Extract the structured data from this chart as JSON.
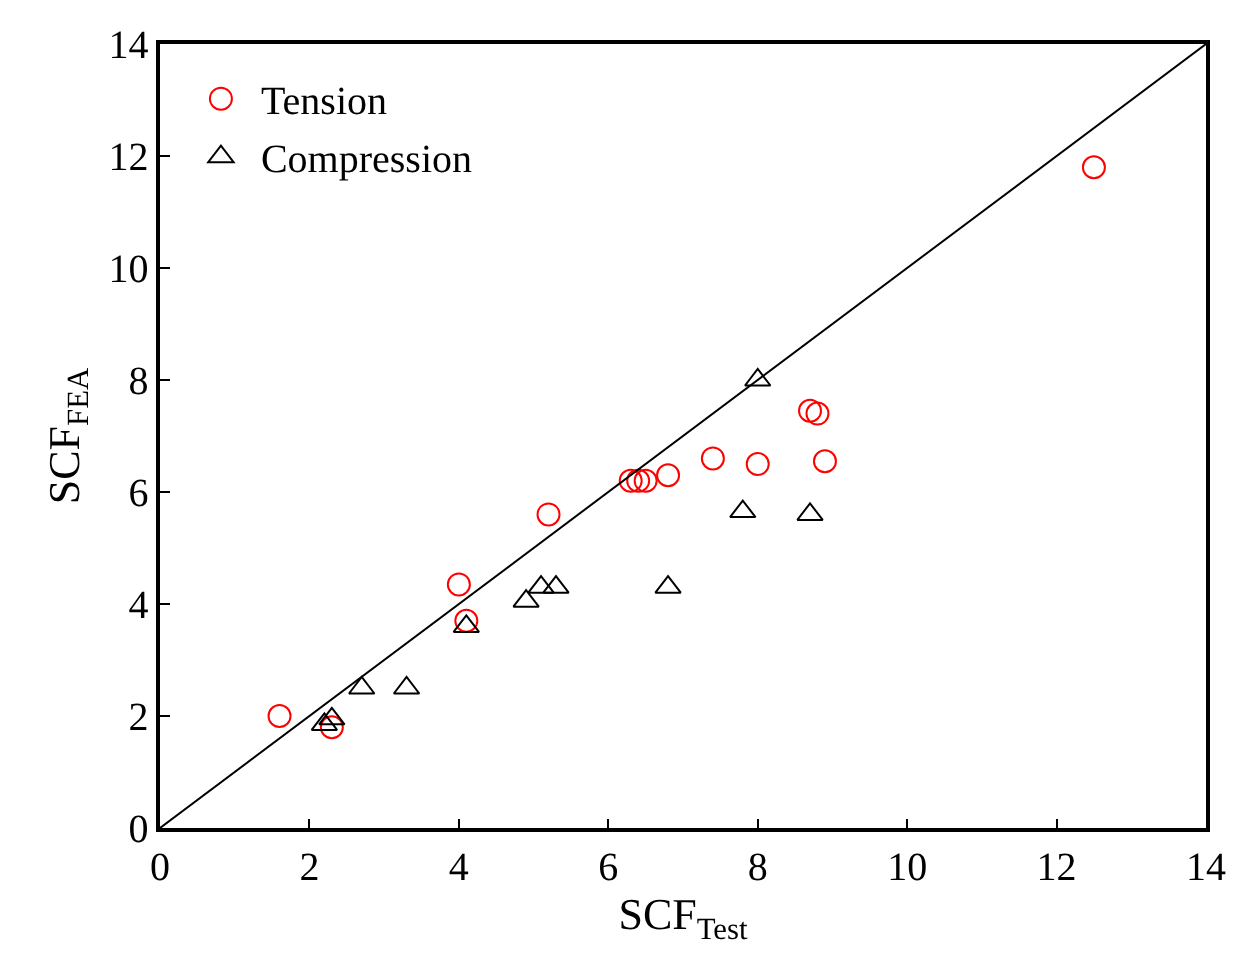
{
  "chart_data": {
    "type": "scatter",
    "xlabel": "SCF$_{Test}$",
    "ylabel": "SCF$_{FEA}$",
    "xlim": [
      0,
      14
    ],
    "ylim": [
      0,
      14
    ],
    "xticks": [
      0,
      2,
      4,
      6,
      8,
      10,
      12,
      14
    ],
    "yticks": [
      0,
      2,
      4,
      6,
      8,
      10,
      12,
      14
    ],
    "legend": "top left",
    "series": [
      {
        "name": "Tension",
        "color": "#ff0000",
        "marker": "circle",
        "x": [
          1.6,
          2.3,
          4.0,
          4.1,
          5.2,
          6.3,
          6.4,
          6.5,
          6.8,
          7.4,
          8.0,
          8.7,
          8.8,
          8.9,
          12.5
        ],
        "values": [
          2.0,
          1.8,
          4.35,
          3.7,
          5.6,
          6.2,
          6.2,
          6.2,
          6.3,
          6.6,
          6.5,
          7.45,
          7.4,
          6.55,
          11.8
        ]
      },
      {
        "name": "Compression",
        "color": "#000000",
        "marker": "triangle",
        "x": [
          2.2,
          2.3,
          2.7,
          3.3,
          4.1,
          4.9,
          5.1,
          5.3,
          6.8,
          7.8,
          8.0,
          8.7
        ],
        "values": [
          1.85,
          1.95,
          2.5,
          2.5,
          3.6,
          4.05,
          4.3,
          4.3,
          4.3,
          5.65,
          8.0,
          5.6
        ]
      },
      {
        "type": "line",
        "color": "#000000",
        "line_style": "solid",
        "x": [
          0,
          14
        ],
        "values": [
          0,
          14
        ]
      }
    ]
  }
}
